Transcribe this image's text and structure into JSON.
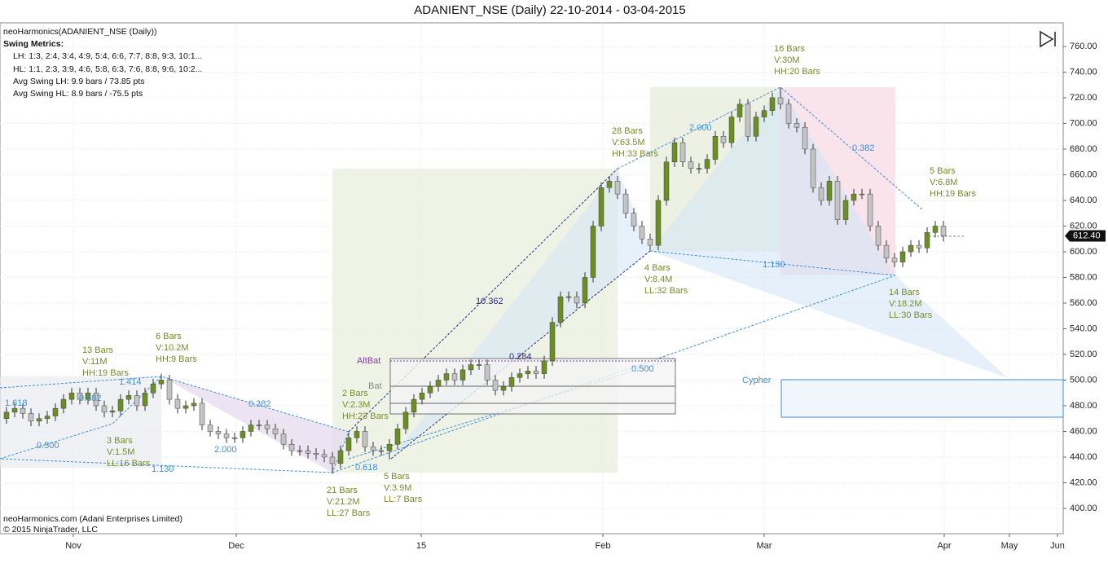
{
  "chart_data": {
    "type": "candlestick",
    "title": "ADANIENT_NSE (Daily)  22-10-2014 - 03-04-2015",
    "header": [
      "neoHarmonics(ADANIENT_NSE (Daily))",
      "Swing Metrics:",
      "LH: 1:3, 2:4, 3:4, 4:9, 5:4, 6:6, 7:7, 8:8, 9:3, 10:1...",
      "HL: 1:1, 2:3, 3:9, 4:6, 5:8, 6:3, 7:6, 8:8, 9:6, 10:2...",
      "Avg Swing LH: 9.9 bars / 73.85 pts",
      "Avg Swing HL: 8.9 bars / -75.5 pts"
    ],
    "footer": [
      "neoHarmonics.com (Adani Enterprises Limited)",
      "© 2015 NinjaTrader, LLC"
    ],
    "up_color": "#6b8e23",
    "down_color": "#c4c4c4",
    "last_label": "612.40",
    "ylim": [
      380.3,
      778.4
    ],
    "yticks": [
      {
        "value": 400,
        "label": "400.00"
      },
      {
        "value": 420,
        "label": "420.00"
      },
      {
        "value": 440,
        "label": "440.00"
      },
      {
        "value": 460,
        "label": "460.00"
      },
      {
        "value": 480,
        "label": "480.00"
      },
      {
        "value": 500,
        "label": "500.00"
      },
      {
        "value": 520,
        "label": "520.00"
      },
      {
        "value": 540,
        "label": "540.00"
      },
      {
        "value": 560,
        "label": "560.00"
      },
      {
        "value": 580,
        "label": "580.00"
      },
      {
        "value": 600,
        "label": "600.00"
      },
      {
        "value": 620,
        "label": "620.00"
      },
      {
        "value": 640,
        "label": "640.00"
      },
      {
        "value": 660,
        "label": "660.00"
      },
      {
        "value": 680,
        "label": "680.00"
      },
      {
        "value": 700,
        "label": "700.00"
      },
      {
        "value": 720,
        "label": "720.00"
      },
      {
        "value": 740,
        "label": "740.00"
      },
      {
        "value": 760,
        "label": "760.00"
      }
    ],
    "xlim": [
      -0.8,
      129.7
    ],
    "xticks": [
      {
        "value": 8.2,
        "label": "Nov"
      },
      {
        "value": 28.2,
        "label": "Dec"
      },
      {
        "value": 50.9,
        "label": "15"
      },
      {
        "value": 73.2,
        "label": "Feb"
      },
      {
        "value": 93,
        "label": "Mar"
      },
      {
        "value": 115.1,
        "label": "Apr"
      },
      {
        "value": 123.1,
        "label": "May"
      },
      {
        "value": 129,
        "label": "Jun"
      }
    ],
    "grid": true,
    "ohlc": [
      [
        470,
        479,
        466,
        475
      ],
      [
        475,
        482,
        471,
        478
      ],
      [
        478,
        482,
        470,
        474
      ],
      [
        474,
        478,
        464,
        468
      ],
      [
        468,
        474,
        464,
        470
      ],
      [
        470,
        476,
        466,
        472
      ],
      [
        472,
        482,
        468,
        478
      ],
      [
        478,
        489,
        474,
        485
      ],
      [
        485,
        494,
        481,
        490
      ],
      [
        490,
        494,
        481,
        485
      ],
      [
        485,
        494,
        481,
        490
      ],
      [
        490,
        494,
        476,
        480
      ],
      [
        480,
        484,
        471,
        475
      ],
      [
        475,
        480,
        471,
        476
      ],
      [
        476,
        489,
        472,
        485
      ],
      [
        485,
        492,
        481,
        488
      ],
      [
        488,
        492,
        476,
        480
      ],
      [
        480,
        494,
        476,
        490
      ],
      [
        490,
        501,
        486,
        497
      ],
      [
        497,
        505,
        493,
        500
      ],
      [
        500,
        504,
        481,
        485
      ],
      [
        485,
        489,
        474,
        478
      ],
      [
        478,
        484,
        474,
        480
      ],
      [
        480,
        486,
        476,
        482
      ],
      [
        482,
        486,
        461,
        465
      ],
      [
        465,
        469,
        456,
        460
      ],
      [
        460,
        464,
        454,
        458
      ],
      [
        458,
        462,
        451,
        455
      ],
      [
        455,
        459,
        451,
        455
      ],
      [
        455,
        464,
        451,
        460
      ],
      [
        460,
        469,
        456,
        465
      ],
      [
        465,
        469,
        461,
        465
      ],
      [
        465,
        469,
        458,
        462
      ],
      [
        462,
        466,
        454,
        458
      ],
      [
        458,
        462,
        446,
        450
      ],
      [
        450,
        454,
        441,
        445
      ],
      [
        445,
        449,
        441,
        445
      ],
      [
        445,
        449,
        439,
        443
      ],
      [
        443,
        447,
        438,
        442
      ],
      [
        442,
        446,
        436,
        440
      ],
      [
        440,
        444,
        427,
        435
      ],
      [
        435,
        449,
        431,
        445
      ],
      [
        445,
        459,
        441,
        455
      ],
      [
        455,
        464,
        451,
        460
      ],
      [
        460,
        464,
        444,
        448
      ],
      [
        448,
        452,
        441,
        445
      ],
      [
        445,
        449,
        441,
        445
      ],
      [
        445,
        454,
        438,
        450
      ],
      [
        450,
        466,
        446,
        462
      ],
      [
        462,
        479,
        458,
        475
      ],
      [
        475,
        489,
        471,
        485
      ],
      [
        485,
        494,
        481,
        490
      ],
      [
        490,
        499,
        486,
        495
      ],
      [
        495,
        504,
        491,
        500
      ],
      [
        500,
        509,
        496,
        505
      ],
      [
        505,
        509,
        496,
        500
      ],
      [
        500,
        512,
        496,
        508
      ],
      [
        508,
        516,
        504,
        512
      ],
      [
        512,
        516,
        508,
        512
      ],
      [
        512,
        516,
        496,
        500
      ],
      [
        500,
        504,
        488,
        492
      ],
      [
        492,
        499,
        488,
        495
      ],
      [
        495,
        506,
        491,
        502
      ],
      [
        502,
        509,
        498,
        505
      ],
      [
        505,
        511,
        501,
        507
      ],
      [
        507,
        511,
        501,
        505
      ],
      [
        505,
        519,
        501,
        515
      ],
      [
        515,
        549,
        511,
        545
      ],
      [
        545,
        569,
        541,
        565
      ],
      [
        565,
        569,
        561,
        565
      ],
      [
        565,
        569,
        556,
        560
      ],
      [
        560,
        584,
        556,
        580
      ],
      [
        580,
        624,
        576,
        620
      ],
      [
        620,
        654,
        616,
        650
      ],
      [
        650,
        659,
        646,
        655
      ],
      [
        655,
        659,
        641,
        645
      ],
      [
        645,
        649,
        626,
        630
      ],
      [
        630,
        634,
        616,
        620
      ],
      [
        620,
        624,
        606,
        610
      ],
      [
        610,
        614,
        601,
        605
      ],
      [
        605,
        644,
        601,
        640
      ],
      [
        640,
        674,
        636,
        670
      ],
      [
        670,
        689,
        666,
        685
      ],
      [
        685,
        689,
        666,
        670
      ],
      [
        670,
        674,
        661,
        665
      ],
      [
        665,
        669,
        661,
        665
      ],
      [
        665,
        676,
        661,
        672
      ],
      [
        672,
        694,
        668,
        690
      ],
      [
        690,
        694,
        681,
        685
      ],
      [
        685,
        709,
        681,
        705
      ],
      [
        705,
        719,
        701,
        715
      ],
      [
        715,
        719,
        686,
        690
      ],
      [
        690,
        709,
        686,
        705
      ],
      [
        705,
        714,
        701,
        710
      ],
      [
        710,
        724,
        706,
        720
      ],
      [
        720,
        728,
        711,
        715
      ],
      [
        715,
        719,
        696,
        700
      ],
      [
        700,
        704,
        693,
        697
      ],
      [
        697,
        701,
        676,
        680
      ],
      [
        680,
        684,
        646,
        650
      ],
      [
        650,
        654,
        636,
        640
      ],
      [
        640,
        659,
        636,
        655
      ],
      [
        655,
        659,
        621,
        625
      ],
      [
        625,
        644,
        621,
        640
      ],
      [
        640,
        649,
        636,
        645
      ],
      [
        645,
        649,
        641,
        645
      ],
      [
        645,
        649,
        616,
        620
      ],
      [
        620,
        624,
        601,
        605
      ],
      [
        605,
        609,
        591,
        595
      ],
      [
        595,
        599,
        588,
        592
      ],
      [
        592,
        604,
        588,
        600
      ],
      [
        600,
        609,
        596,
        605
      ],
      [
        605,
        609,
        599,
        603
      ],
      [
        603,
        619,
        599,
        615
      ],
      [
        615,
        624,
        611,
        620
      ],
      [
        620,
        624,
        608,
        612.4
      ]
    ],
    "annotations": [
      "16 Bars",
      "V:30M",
      "HH:20 Bars",
      "28 Bars",
      "V:63.5M",
      "HH:33 Bars",
      "5 Bars",
      "V:6.8M",
      "HH:19 Bars",
      "4 Bars",
      "V:8.4M",
      "LL:32 Bars",
      "14 Bars",
      "V:18.2M",
      "LL:30 Bars",
      "13 Bars",
      "V:11M",
      "HH:19 Bars",
      "6 Bars",
      "V:10.2M",
      "HH:9 Bars",
      "2 Bars",
      "V:2.3M",
      "HH:23 Bars",
      "3 Bars",
      "V:1.5M",
      "LL:16 Bars",
      "21 Bars",
      "V:21.2M",
      "LL:27 Bars",
      "5 Bars",
      "V:3.9M",
      "LL:7 Bars"
    ],
    "ratios": [
      "2.000",
      "0.382",
      "10.362",
      "1.130",
      "0.284",
      "0.500",
      "1.414",
      "0.382",
      "1.618",
      "0.382",
      "0.500",
      "2.000",
      "1.130",
      "0.618",
      "Cypher",
      "AltBat",
      "Bat"
    ]
  }
}
